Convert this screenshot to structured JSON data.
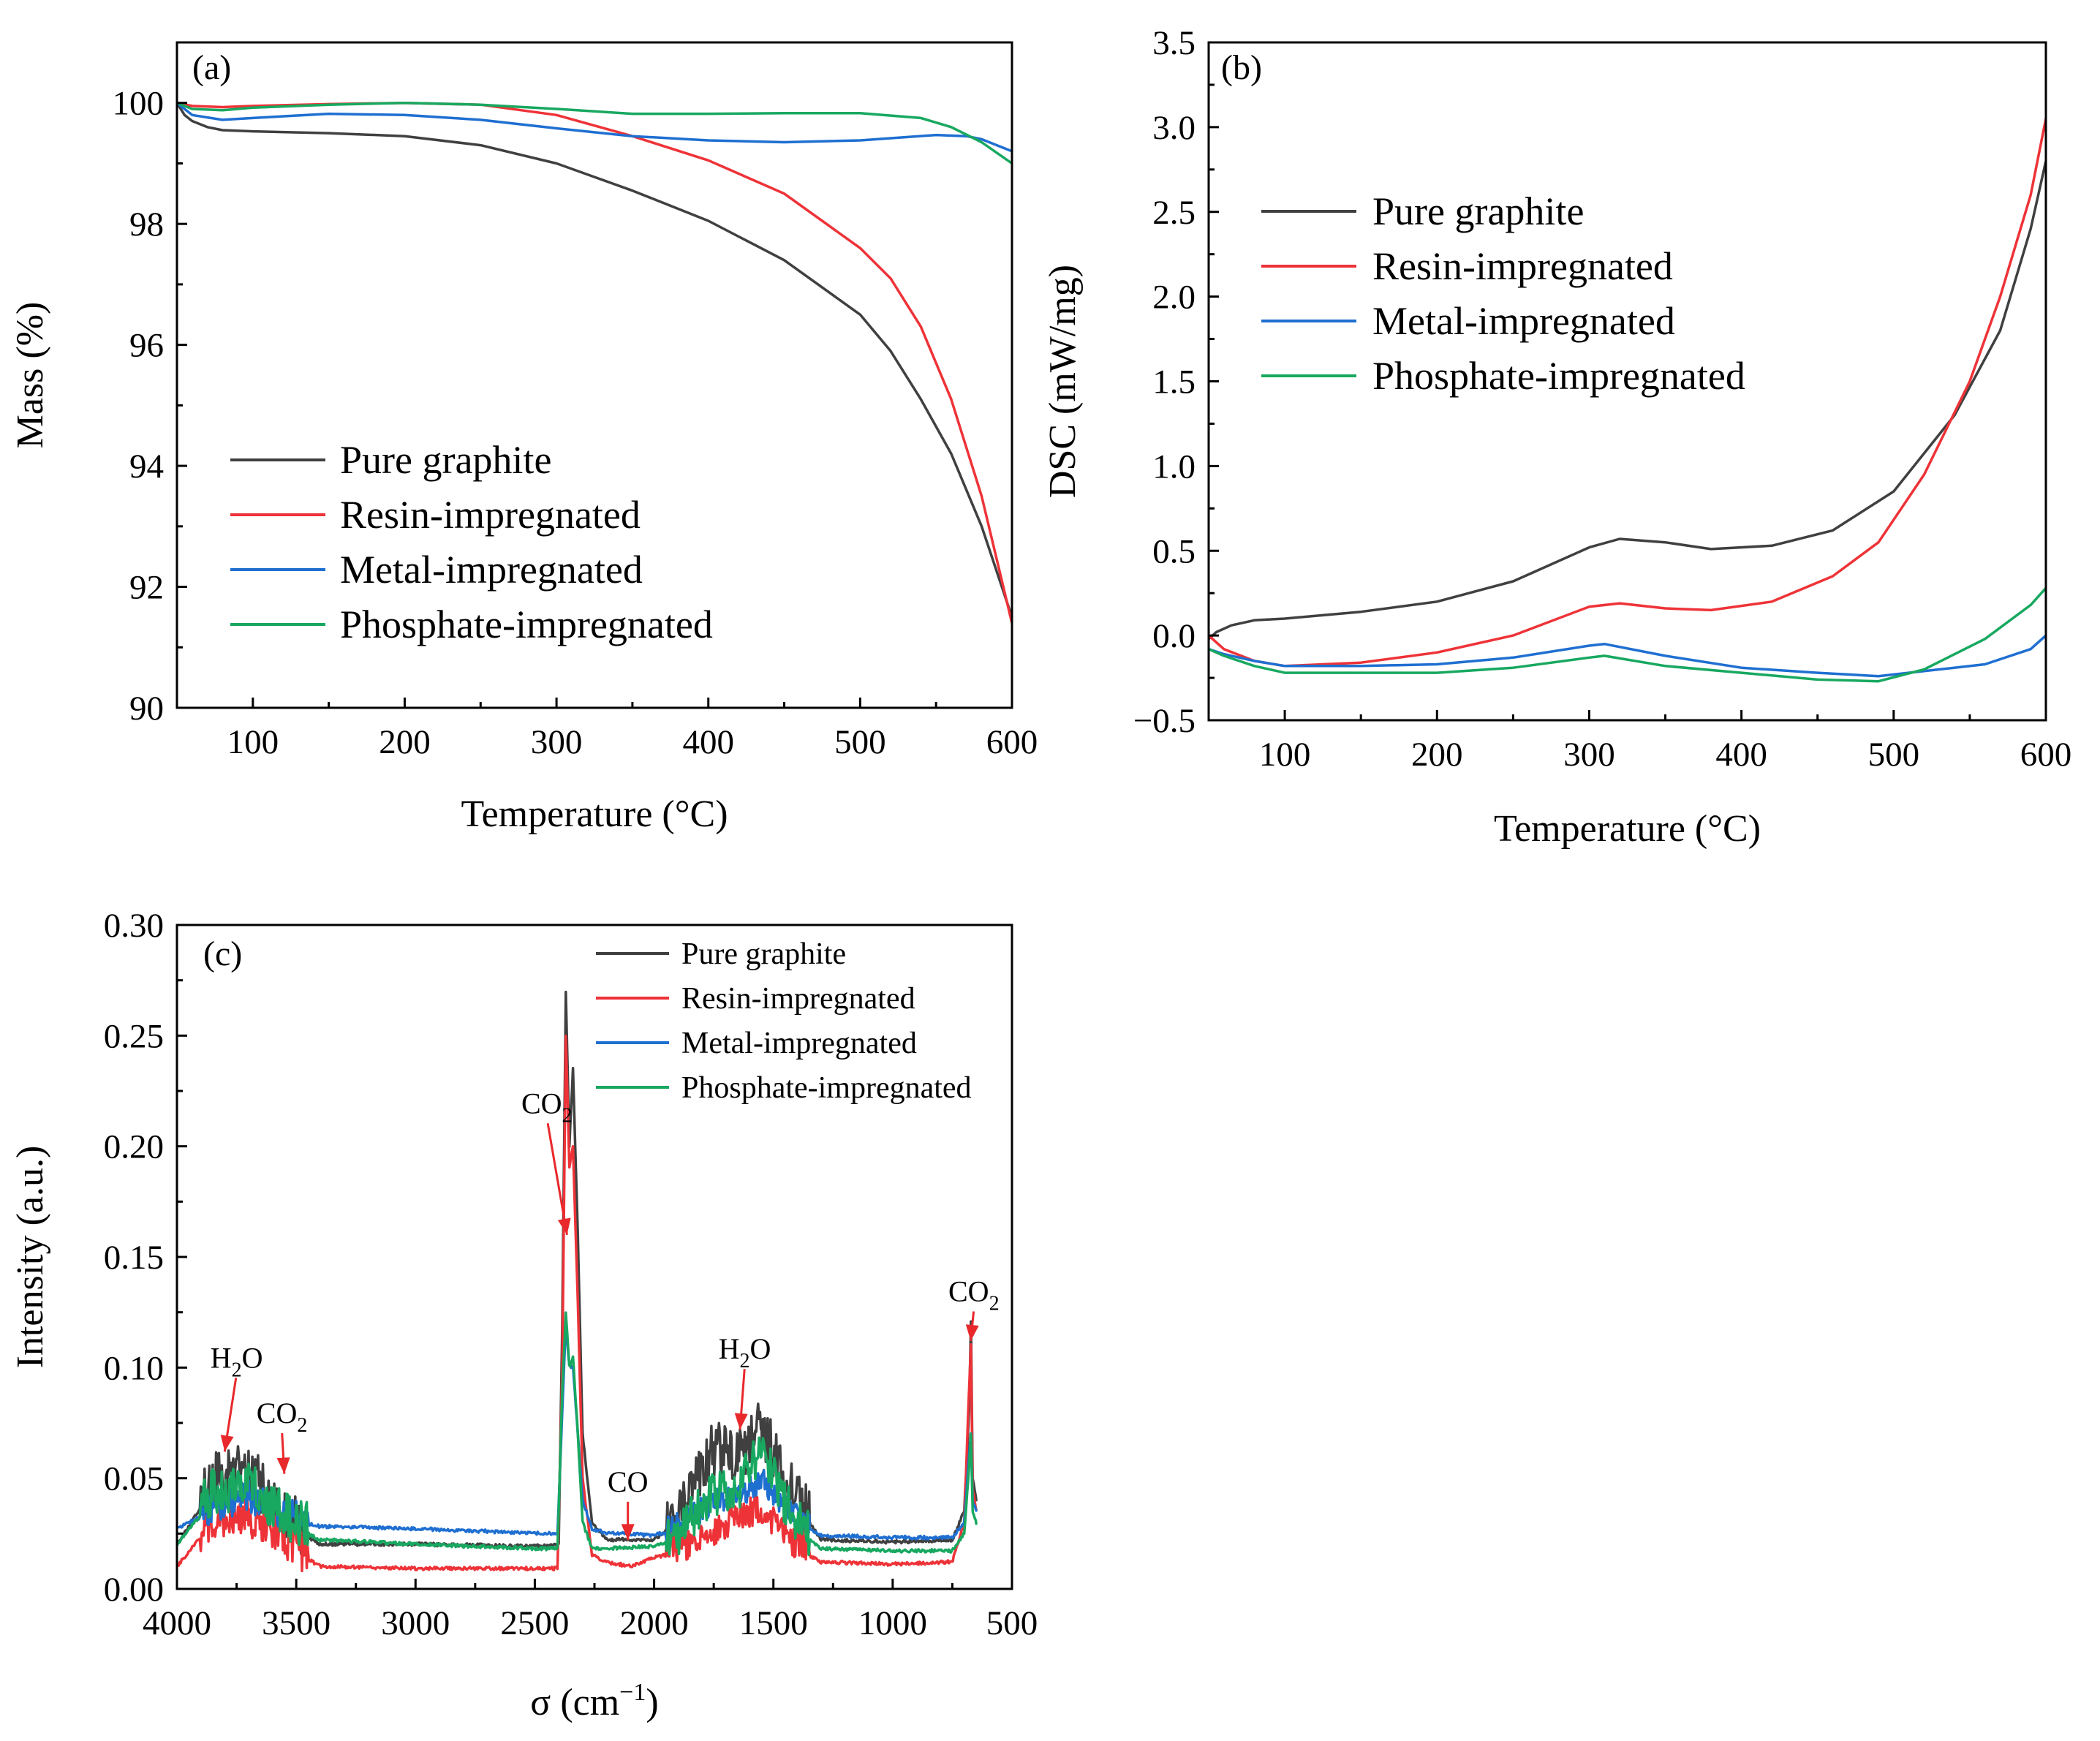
{
  "colors": {
    "Pure graphite": "#404040",
    "Resin-impregnated": "#ee3338",
    "Metal-impregnated": "#1f6fd1",
    "Phosphate-impregnated": "#18a860",
    "annotation": "#e8282b"
  },
  "chart_data": [
    {
      "id": "a",
      "type": "line",
      "panel_label": "(a)",
      "xlabel": "Temperature (°C)",
      "ylabel": "Mass (%)",
      "xlim": [
        50,
        600
      ],
      "ylim": [
        90,
        101
      ],
      "xticks": [
        100,
        200,
        300,
        400,
        500,
        600
      ],
      "yticks": [
        90,
        92,
        94,
        96,
        98,
        100
      ],
      "legend": [
        "Pure graphite",
        "Resin-impregnated",
        "Metal-impregnated",
        "Phosphate-impregnated"
      ],
      "series": [
        {
          "name": "Pure graphite",
          "x": [
            50,
            55,
            60,
            70,
            80,
            100,
            150,
            200,
            250,
            300,
            350,
            400,
            450,
            500,
            520,
            540,
            560,
            580,
            600
          ],
          "y": [
            100,
            99.8,
            99.7,
            99.6,
            99.55,
            99.53,
            99.5,
            99.45,
            99.3,
            99.0,
            98.55,
            98.05,
            97.4,
            96.5,
            95.9,
            95.1,
            94.2,
            93.0,
            91.5
          ]
        },
        {
          "name": "Resin-impregnated",
          "x": [
            50,
            60,
            80,
            100,
            150,
            200,
            250,
            300,
            350,
            400,
            450,
            500,
            520,
            540,
            560,
            580,
            600
          ],
          "y": [
            100,
            99.95,
            99.93,
            99.95,
            99.98,
            100,
            99.97,
            99.8,
            99.45,
            99.05,
            98.5,
            97.6,
            97.1,
            96.3,
            95.1,
            93.5,
            91.4
          ]
        },
        {
          "name": "Metal-impregnated",
          "x": [
            50,
            60,
            80,
            100,
            150,
            200,
            250,
            300,
            350,
            400,
            450,
            500,
            550,
            570,
            580,
            600
          ],
          "y": [
            100,
            99.8,
            99.72,
            99.75,
            99.82,
            99.8,
            99.72,
            99.58,
            99.45,
            99.38,
            99.35,
            99.38,
            99.47,
            99.45,
            99.4,
            99.2
          ]
        },
        {
          "name": "Phosphate-impregnated",
          "x": [
            50,
            60,
            80,
            100,
            150,
            200,
            250,
            300,
            350,
            400,
            450,
            500,
            540,
            560,
            580,
            600
          ],
          "y": [
            100,
            99.9,
            99.88,
            99.92,
            99.97,
            100,
            99.97,
            99.9,
            99.82,
            99.82,
            99.83,
            99.83,
            99.75,
            99.6,
            99.35,
            99.0
          ]
        }
      ]
    },
    {
      "id": "b",
      "type": "line",
      "panel_label": "(b)",
      "xlabel": "Temperature (°C)",
      "ylabel": "DSC (mW/mg)",
      "xlim": [
        50,
        600
      ],
      "ylim": [
        -0.5,
        3.5
      ],
      "xticks": [
        100,
        200,
        300,
        400,
        500,
        600
      ],
      "yticks": [
        -0.5,
        0.0,
        0.5,
        1.0,
        1.5,
        2.0,
        2.5,
        3.0,
        3.5
      ],
      "ytick_labels": [
        "−0.5",
        "0.0",
        "0.5",
        "1.0",
        "1.5",
        "2.0",
        "2.5",
        "3.0",
        "3.5"
      ],
      "legend": [
        "Pure graphite",
        "Resin-impregnated",
        "Metal-impregnated",
        "Phosphate-impregnated"
      ],
      "series": [
        {
          "name": "Pure graphite",
          "x": [
            50,
            55,
            65,
            80,
            100,
            150,
            200,
            250,
            300,
            320,
            350,
            380,
            420,
            460,
            500,
            540,
            570,
            590,
            600
          ],
          "y": [
            -0.02,
            0.02,
            0.06,
            0.09,
            0.1,
            0.14,
            0.2,
            0.32,
            0.52,
            0.57,
            0.55,
            0.51,
            0.53,
            0.62,
            0.85,
            1.3,
            1.8,
            2.4,
            2.8
          ]
        },
        {
          "name": "Resin-impregnated",
          "x": [
            50,
            60,
            80,
            100,
            150,
            200,
            250,
            300,
            320,
            350,
            380,
            420,
            460,
            490,
            520,
            550,
            570,
            590,
            600
          ],
          "y": [
            0,
            -0.08,
            -0.15,
            -0.18,
            -0.16,
            -0.1,
            0.0,
            0.17,
            0.19,
            0.16,
            0.15,
            0.2,
            0.35,
            0.55,
            0.95,
            1.5,
            2.0,
            2.6,
            3.05
          ]
        },
        {
          "name": "Metal-impregnated",
          "x": [
            50,
            60,
            80,
            100,
            150,
            200,
            250,
            300,
            310,
            350,
            400,
            450,
            490,
            520,
            560,
            590,
            600
          ],
          "y": [
            -0.08,
            -0.11,
            -0.15,
            -0.18,
            -0.18,
            -0.17,
            -0.13,
            -0.06,
            -0.05,
            -0.12,
            -0.19,
            -0.22,
            -0.24,
            -0.21,
            -0.17,
            -0.08,
            0.0
          ]
        },
        {
          "name": "Phosphate-impregnated",
          "x": [
            50,
            60,
            80,
            100,
            150,
            200,
            250,
            300,
            310,
            350,
            400,
            450,
            490,
            520,
            560,
            590,
            600
          ],
          "y": [
            -0.08,
            -0.12,
            -0.18,
            -0.22,
            -0.22,
            -0.22,
            -0.19,
            -0.13,
            -0.12,
            -0.18,
            -0.22,
            -0.26,
            -0.27,
            -0.2,
            -0.02,
            0.18,
            0.28
          ]
        }
      ]
    },
    {
      "id": "c",
      "type": "line",
      "panel_label": "(c)",
      "xlabel": "σ (cm⁻¹)",
      "ylabel": "Intensity (a.u.)",
      "xlim": [
        4000,
        500
      ],
      "ylim": [
        0.0,
        0.3
      ],
      "xticks": [
        4000,
        3500,
        3000,
        2500,
        2000,
        1500,
        1000,
        500
      ],
      "yticks": [
        0.0,
        0.05,
        0.1,
        0.15,
        0.2,
        0.25,
        0.3
      ],
      "ytick_labels": [
        "0.00",
        "0.05",
        "0.10",
        "0.15",
        "0.20",
        "0.25",
        "0.30"
      ],
      "legend": [
        "Pure graphite",
        "Resin-impregnated",
        "Metal-impregnated",
        "Phosphate-impregnated"
      ],
      "annotations": [
        {
          "text": "H2O",
          "main": "H",
          "sub": "2",
          "tail": "O",
          "x": 3750,
          "y": 0.1,
          "tx": 3800,
          "ty": 0.062
        },
        {
          "text": "CO2",
          "main": "CO",
          "sub": "2",
          "tail": "",
          "x": 3560,
          "y": 0.075,
          "tx": 3550,
          "ty": 0.052
        },
        {
          "text": "CO2",
          "main": "CO",
          "sub": "2",
          "tail": "",
          "x": 2450,
          "y": 0.215,
          "tx": 2365,
          "ty": 0.16
        },
        {
          "text": "CO",
          "main": "CO",
          "sub": "",
          "tail": "",
          "x": 2110,
          "y": 0.044,
          "tx": 2110,
          "ty": 0.022
        },
        {
          "text": "H2O",
          "main": "H",
          "sub": "2",
          "tail": "O",
          "x": 1620,
          "y": 0.104,
          "tx": 1640,
          "ty": 0.072
        },
        {
          "text": "CO2",
          "main": "CO",
          "sub": "2",
          "tail": "",
          "x": 660,
          "y": 0.13,
          "tx": 673,
          "ty": 0.112
        }
      ],
      "series": [
        {
          "name": "Pure graphite",
          "base": [
            [
              4000,
              0.02
            ],
            [
              3850,
              0.045
            ],
            [
              3700,
              0.05
            ],
            [
              3550,
              0.028
            ],
            [
              3400,
              0.02
            ],
            [
              3000,
              0.02
            ],
            [
              2500,
              0.019
            ],
            [
              2400,
              0.02
            ],
            [
              2385,
              0.12
            ],
            [
              2370,
              0.27
            ],
            [
              2355,
              0.2
            ],
            [
              2340,
              0.235
            ],
            [
              2320,
              0.16
            ],
            [
              2300,
              0.07
            ],
            [
              2260,
              0.03
            ],
            [
              2200,
              0.022
            ],
            [
              2000,
              0.022
            ],
            [
              1900,
              0.03
            ],
            [
              1750,
              0.06
            ],
            [
              1650,
              0.055
            ],
            [
              1550,
              0.07
            ],
            [
              1450,
              0.045
            ],
            [
              1350,
              0.03
            ],
            [
              1300,
              0.022
            ],
            [
              1000,
              0.021
            ],
            [
              750,
              0.022
            ],
            [
              700,
              0.035
            ],
            [
              680,
              0.08
            ],
            [
              672,
              0.12
            ],
            [
              665,
              0.05
            ],
            [
              650,
              0.04
            ]
          ],
          "noise": [
            [
              3900,
              3450,
              0.025
            ],
            [
              1950,
              1350,
              0.025
            ]
          ]
        },
        {
          "name": "Resin-impregnated",
          "base": [
            [
              4000,
              0.01
            ],
            [
              3850,
              0.03
            ],
            [
              3700,
              0.03
            ],
            [
              3550,
              0.02
            ],
            [
              3400,
              0.01
            ],
            [
              3000,
              0.009
            ],
            [
              2500,
              0.009
            ],
            [
              2405,
              0.009
            ],
            [
              2385,
              0.1
            ],
            [
              2370,
              0.25
            ],
            [
              2355,
              0.19
            ],
            [
              2340,
              0.2
            ],
            [
              2320,
              0.13
            ],
            [
              2300,
              0.05
            ],
            [
              2260,
              0.015
            ],
            [
              2200,
              0.012
            ],
            [
              2100,
              0.01
            ],
            [
              2000,
              0.014
            ],
            [
              1900,
              0.016
            ],
            [
              1750,
              0.025
            ],
            [
              1650,
              0.03
            ],
            [
              1550,
              0.035
            ],
            [
              1450,
              0.022
            ],
            [
              1350,
              0.015
            ],
            [
              1300,
              0.012
            ],
            [
              1000,
              0.011
            ],
            [
              750,
              0.012
            ],
            [
              700,
              0.03
            ],
            [
              680,
              0.09
            ],
            [
              672,
              0.11
            ],
            [
              665,
              0.045
            ],
            [
              650,
              0.035
            ]
          ],
          "noise": [
            [
              3900,
              3450,
              0.02
            ],
            [
              1950,
              1350,
              0.015
            ]
          ]
        },
        {
          "name": "Metal-impregnated",
          "base": [
            [
              4000,
              0.027
            ],
            [
              3850,
              0.035
            ],
            [
              3700,
              0.04
            ],
            [
              3550,
              0.032
            ],
            [
              3400,
              0.028
            ],
            [
              3000,
              0.027
            ],
            [
              2500,
              0.025
            ],
            [
              2405,
              0.025
            ],
            [
              2385,
              0.08
            ],
            [
              2370,
              0.12
            ],
            [
              2355,
              0.1
            ],
            [
              2340,
              0.1
            ],
            [
              2320,
              0.07
            ],
            [
              2300,
              0.04
            ],
            [
              2260,
              0.027
            ],
            [
              2200,
              0.025
            ],
            [
              2000,
              0.024
            ],
            [
              1900,
              0.027
            ],
            [
              1750,
              0.038
            ],
            [
              1650,
              0.04
            ],
            [
              1550,
              0.048
            ],
            [
              1450,
              0.035
            ],
            [
              1350,
              0.027
            ],
            [
              1300,
              0.024
            ],
            [
              1000,
              0.023
            ],
            [
              750,
              0.023
            ],
            [
              700,
              0.03
            ],
            [
              680,
              0.06
            ],
            [
              672,
              0.07
            ],
            [
              665,
              0.04
            ],
            [
              650,
              0.035
            ]
          ],
          "noise": [
            [
              3900,
              3450,
              0.015
            ],
            [
              1950,
              1350,
              0.012
            ]
          ]
        },
        {
          "name": "Phosphate-impregnated",
          "base": [
            [
              4000,
              0.02
            ],
            [
              3850,
              0.04
            ],
            [
              3700,
              0.045
            ],
            [
              3550,
              0.03
            ],
            [
              3400,
              0.022
            ],
            [
              3000,
              0.02
            ],
            [
              2500,
              0.018
            ],
            [
              2405,
              0.018
            ],
            [
              2385,
              0.09
            ],
            [
              2370,
              0.125
            ],
            [
              2355,
              0.1
            ],
            [
              2340,
              0.105
            ],
            [
              2320,
              0.07
            ],
            [
              2300,
              0.03
            ],
            [
              2260,
              0.018
            ],
            [
              2200,
              0.018
            ],
            [
              2000,
              0.019
            ],
            [
              1900,
              0.022
            ],
            [
              1750,
              0.04
            ],
            [
              1650,
              0.042
            ],
            [
              1550,
              0.06
            ],
            [
              1450,
              0.035
            ],
            [
              1350,
              0.022
            ],
            [
              1300,
              0.018
            ],
            [
              1000,
              0.017
            ],
            [
              750,
              0.017
            ],
            [
              700,
              0.025
            ],
            [
              680,
              0.055
            ],
            [
              672,
              0.07
            ],
            [
              665,
              0.035
            ],
            [
              650,
              0.03
            ]
          ],
          "noise": [
            [
              3900,
              3450,
              0.022
            ],
            [
              1950,
              1350,
              0.02
            ]
          ]
        }
      ]
    }
  ]
}
